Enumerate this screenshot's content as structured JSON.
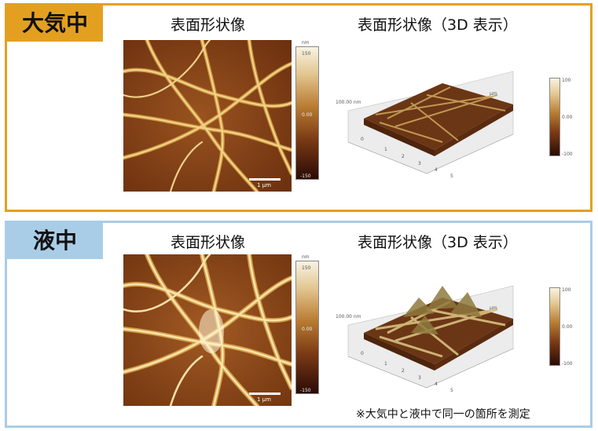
{
  "air": {
    "tag": "大気中",
    "title_surface": "表面形状像",
    "title_3d": "表面形状像（3D 表示）",
    "scale_label": "1 μm",
    "colorbar": {
      "unit": "nm",
      "max": "150",
      "mid": "0.00",
      "min": "-150"
    },
    "plot": {
      "z_label": "100.00 nm",
      "axis_unit": "μm",
      "ticks": [
        "0",
        "1",
        "2",
        "3",
        "4",
        "5"
      ]
    },
    "colorbar3d": {
      "max": "100",
      "mid": "0.00",
      "min": "-100"
    }
  },
  "liquid": {
    "tag": "液中",
    "title_surface": "表面形状像",
    "title_3d": "表面形状像（3D 表示）",
    "scale_label": "1 μm",
    "colorbar": {
      "unit": "nm",
      "max": "150",
      "mid": "0.00",
      "min": "-150"
    },
    "plot": {
      "z_label": "100.00 nm",
      "axis_unit": "μm",
      "ticks": [
        "0",
        "1",
        "2",
        "3",
        "4",
        "5"
      ]
    },
    "colorbar3d": {
      "max": "100",
      "mid": "0.00",
      "min": "-100"
    }
  },
  "note": "※大気中と液中で同一の箇所を測定",
  "colors": {
    "air_accent": "#E3A020",
    "liquid_accent": "#A9CDE7",
    "fiber_light": "#F5E3A8",
    "background_dark": "#7A3A12"
  }
}
